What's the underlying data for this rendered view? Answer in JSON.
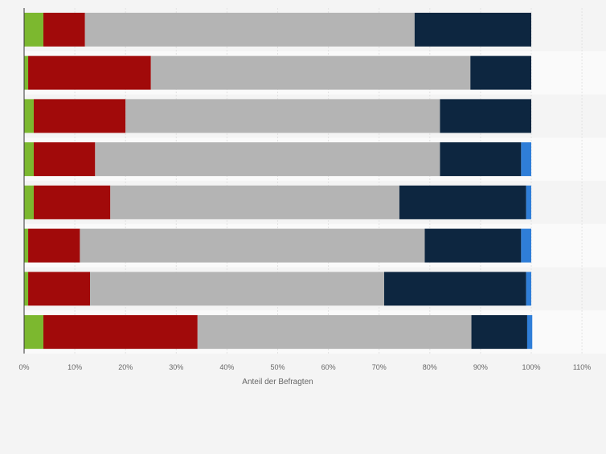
{
  "chart_data": {
    "type": "bar",
    "orientation": "horizontal",
    "stacked": true,
    "xlabel": "Anteil der Befragten",
    "xlim": [
      0,
      110
    ],
    "xticks": [
      0,
      10,
      20,
      30,
      40,
      50,
      60,
      70,
      80,
      90,
      100,
      110
    ],
    "tick_suffix": "%",
    "grid": true,
    "legend": "none visible",
    "rows": 8,
    "series": [
      {
        "color": "#7cb82f",
        "values": [
          3.8,
          0.8,
          1.9,
          1.9,
          1.9,
          0.8,
          0.8,
          3.8
        ]
      },
      {
        "color": "#a10a0a",
        "values": [
          8.2,
          24.2,
          18.1,
          12.1,
          15.1,
          10.2,
          12.2,
          30.4
        ]
      },
      {
        "color": "#b4b4b4",
        "values": [
          65.0,
          63.0,
          62.0,
          68.0,
          57.0,
          68.0,
          58.0,
          54.0
        ]
      },
      {
        "color": "#0d2640",
        "values": [
          23.0,
          12.0,
          18.0,
          16.0,
          25.0,
          19.0,
          28.0,
          11.0
        ]
      },
      {
        "color": "#2f7ed8",
        "values": [
          0,
          0,
          0,
          2.0,
          1.0,
          2.0,
          1.0,
          1.0
        ]
      }
    ]
  }
}
